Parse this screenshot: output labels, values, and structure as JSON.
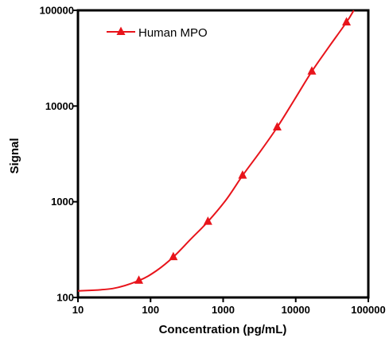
{
  "chart_data": {
    "type": "line",
    "title": "",
    "xlabel": "Concentration (pg/mL)",
    "ylabel": "Signal",
    "x_scale": "log",
    "y_scale": "log",
    "xlim": [
      10,
      100000
    ],
    "ylim": [
      100,
      100000
    ],
    "x_ticks": [
      "10",
      "100",
      "1000",
      "10000",
      "100000"
    ],
    "y_ticks": [
      "100",
      "1000",
      "10000",
      "100000"
    ],
    "grid": false,
    "legend_position": "top-left",
    "series": [
      {
        "name": "Human MPO",
        "color": "#e8141b",
        "marker": "triangle",
        "points": [
          {
            "x": 69,
            "y": 150
          },
          {
            "x": 206,
            "y": 265
          },
          {
            "x": 617,
            "y": 620
          },
          {
            "x": 1852,
            "y": 1880
          },
          {
            "x": 5556,
            "y": 6000
          },
          {
            "x": 16667,
            "y": 23000
          },
          {
            "x": 50000,
            "y": 75000
          }
        ],
        "curve": [
          {
            "x": 10,
            "y": 117
          },
          {
            "x": 30,
            "y": 124
          },
          {
            "x": 69,
            "y": 150
          },
          {
            "x": 120,
            "y": 190
          },
          {
            "x": 206,
            "y": 265
          },
          {
            "x": 350,
            "y": 400
          },
          {
            "x": 617,
            "y": 620
          },
          {
            "x": 1100,
            "y": 1050
          },
          {
            "x": 1852,
            "y": 1880
          },
          {
            "x": 3200,
            "y": 3300
          },
          {
            "x": 5556,
            "y": 6000
          },
          {
            "x": 9500,
            "y": 11500
          },
          {
            "x": 16667,
            "y": 23000
          },
          {
            "x": 29000,
            "y": 42000
          },
          {
            "x": 50000,
            "y": 75000
          },
          {
            "x": 63000,
            "y": 100000
          }
        ]
      }
    ]
  }
}
